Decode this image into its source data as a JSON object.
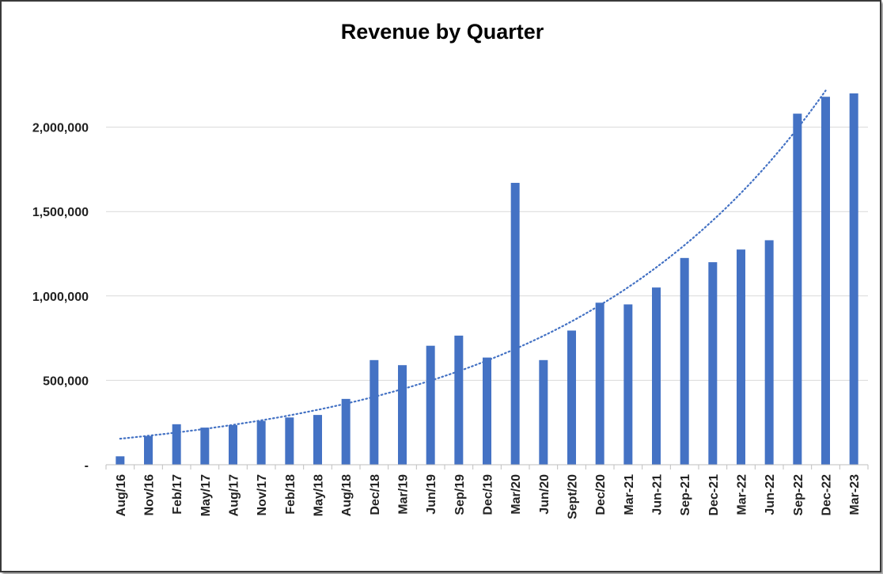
{
  "chart_data": {
    "type": "bar",
    "title": "Revenue by Quarter",
    "xlabel": "",
    "ylabel": "",
    "ylim": [
      0,
      2500000
    ],
    "yticks": [
      0,
      500000,
      1000000,
      1500000,
      2000000
    ],
    "ytick_labels": [
      "-",
      "500,000",
      "1,000,000",
      "1,500,000",
      "2,000,000"
    ],
    "grid": true,
    "legend": "none",
    "bar_color": "#4472C4",
    "trendline": {
      "type": "exponential",
      "style": "dotted",
      "color": "#4472C4"
    },
    "categories": [
      "Aug/16",
      "Nov/16",
      "Feb/17",
      "May/17",
      "Aug/17",
      "Nov/17",
      "Feb/18",
      "May/18",
      "Aug/18",
      "Dec/18",
      "Mar/19",
      "Jun/19",
      "Sep/19",
      "Dec/19",
      "Mar/20",
      "Jun/20",
      "Sept/20",
      "Dec/20",
      "Mar-21",
      "Jun-21",
      "Sep-21",
      "Dec-21",
      "Mar-22",
      "Jun-22",
      "Sep-22",
      "Dec-22",
      "Mar-23"
    ],
    "values": [
      50000,
      170000,
      240000,
      220000,
      235000,
      260000,
      280000,
      295000,
      390000,
      620000,
      590000,
      705000,
      765000,
      635000,
      1670000,
      620000,
      795000,
      960000,
      950000,
      1050000,
      1225000,
      1200000,
      1275000,
      1330000,
      2080000,
      2180000,
      2200000
    ]
  }
}
